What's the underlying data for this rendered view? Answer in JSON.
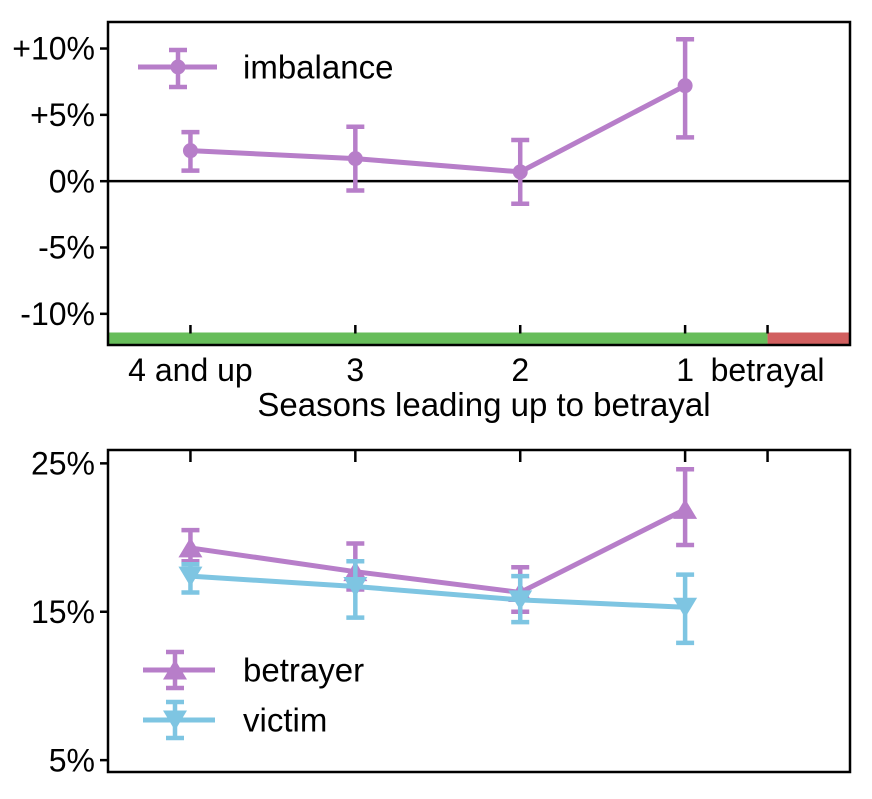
{
  "figure": {
    "description": "Two stacked error-bar line charts showing probability imbalance and betrayer/victim rates over seasons leading up to a betrayal"
  },
  "colors": {
    "imbalance": "#b77ec9",
    "betrayer": "#b77ec9",
    "victim": "#7ec5e2",
    "friendship_span": "#67bd5a",
    "betrayal_span": "#d15f5f",
    "axis": "#000000"
  },
  "chart_data": [
    {
      "type": "line",
      "title": "",
      "xlabel": "Seasons leading up to betrayal",
      "ylabel": "",
      "grid": false,
      "xlim": [
        -0.5,
        4.0
      ],
      "ylim": [
        -12.35,
        12.0
      ],
      "x_ticks": [
        {
          "pos": 0,
          "label": "4 and up"
        },
        {
          "pos": 1,
          "label": "3"
        },
        {
          "pos": 2,
          "label": "2"
        },
        {
          "pos": 3,
          "label": "1"
        },
        {
          "pos": 3.5,
          "label": "betrayal"
        }
      ],
      "y_ticks": [
        {
          "value": 10,
          "label": "+10%"
        },
        {
          "value": 5,
          "label": "+5%"
        },
        {
          "value": 0,
          "label": "0%"
        },
        {
          "value": -5,
          "label": "-5%"
        },
        {
          "value": -10,
          "label": "-10%"
        }
      ],
      "zero_line": true,
      "legend_position": "upper-left",
      "spans": [
        {
          "name": "friendship-period",
          "from": -0.5,
          "to": 3.5,
          "color_key": "friendship_span"
        },
        {
          "name": "betrayal-period",
          "from": 3.5,
          "to": 4.0,
          "color_key": "betrayal_span"
        }
      ],
      "series": [
        {
          "name": "imbalance",
          "marker": "circle",
          "color_key": "imbalance",
          "x": [
            0,
            1,
            2,
            3
          ],
          "y": [
            2.3,
            1.7,
            0.7,
            7.2
          ],
          "err_low": [
            0.8,
            -0.7,
            -1.7,
            3.3
          ],
          "err_high": [
            3.7,
            4.1,
            3.1,
            10.7
          ]
        }
      ]
    },
    {
      "type": "line",
      "title": "",
      "xlabel": "",
      "ylabel": "",
      "grid": false,
      "xlim": [
        -0.5,
        4.0
      ],
      "ylim": [
        4.2,
        25.9
      ],
      "x_ticks": [
        {
          "pos": 0,
          "label": ""
        },
        {
          "pos": 1,
          "label": ""
        },
        {
          "pos": 2,
          "label": ""
        },
        {
          "pos": 3,
          "label": ""
        },
        {
          "pos": 3.5,
          "label": ""
        }
      ],
      "y_ticks": [
        {
          "value": 25,
          "label": "25%"
        },
        {
          "value": 15,
          "label": "15%"
        },
        {
          "value": 5,
          "label": "5%"
        }
      ],
      "zero_line": false,
      "legend_position": "lower-left",
      "spans": [],
      "series": [
        {
          "name": "betrayer",
          "marker": "triangle-up",
          "color_key": "betrayer",
          "x": [
            0,
            1,
            2,
            3
          ],
          "y": [
            19.3,
            17.7,
            16.3,
            21.9
          ],
          "err_low": [
            18.4,
            16.5,
            15.0,
            19.5
          ],
          "err_high": [
            20.5,
            19.6,
            18.0,
            24.6
          ]
        },
        {
          "name": "victim",
          "marker": "triangle-down",
          "color_key": "victim",
          "x": [
            0,
            1,
            2,
            3
          ],
          "y": [
            17.4,
            16.7,
            15.8,
            15.3
          ],
          "err_low": [
            16.3,
            14.6,
            14.3,
            12.9
          ],
          "err_high": [
            18.2,
            18.4,
            17.4,
            17.5
          ]
        }
      ]
    }
  ]
}
